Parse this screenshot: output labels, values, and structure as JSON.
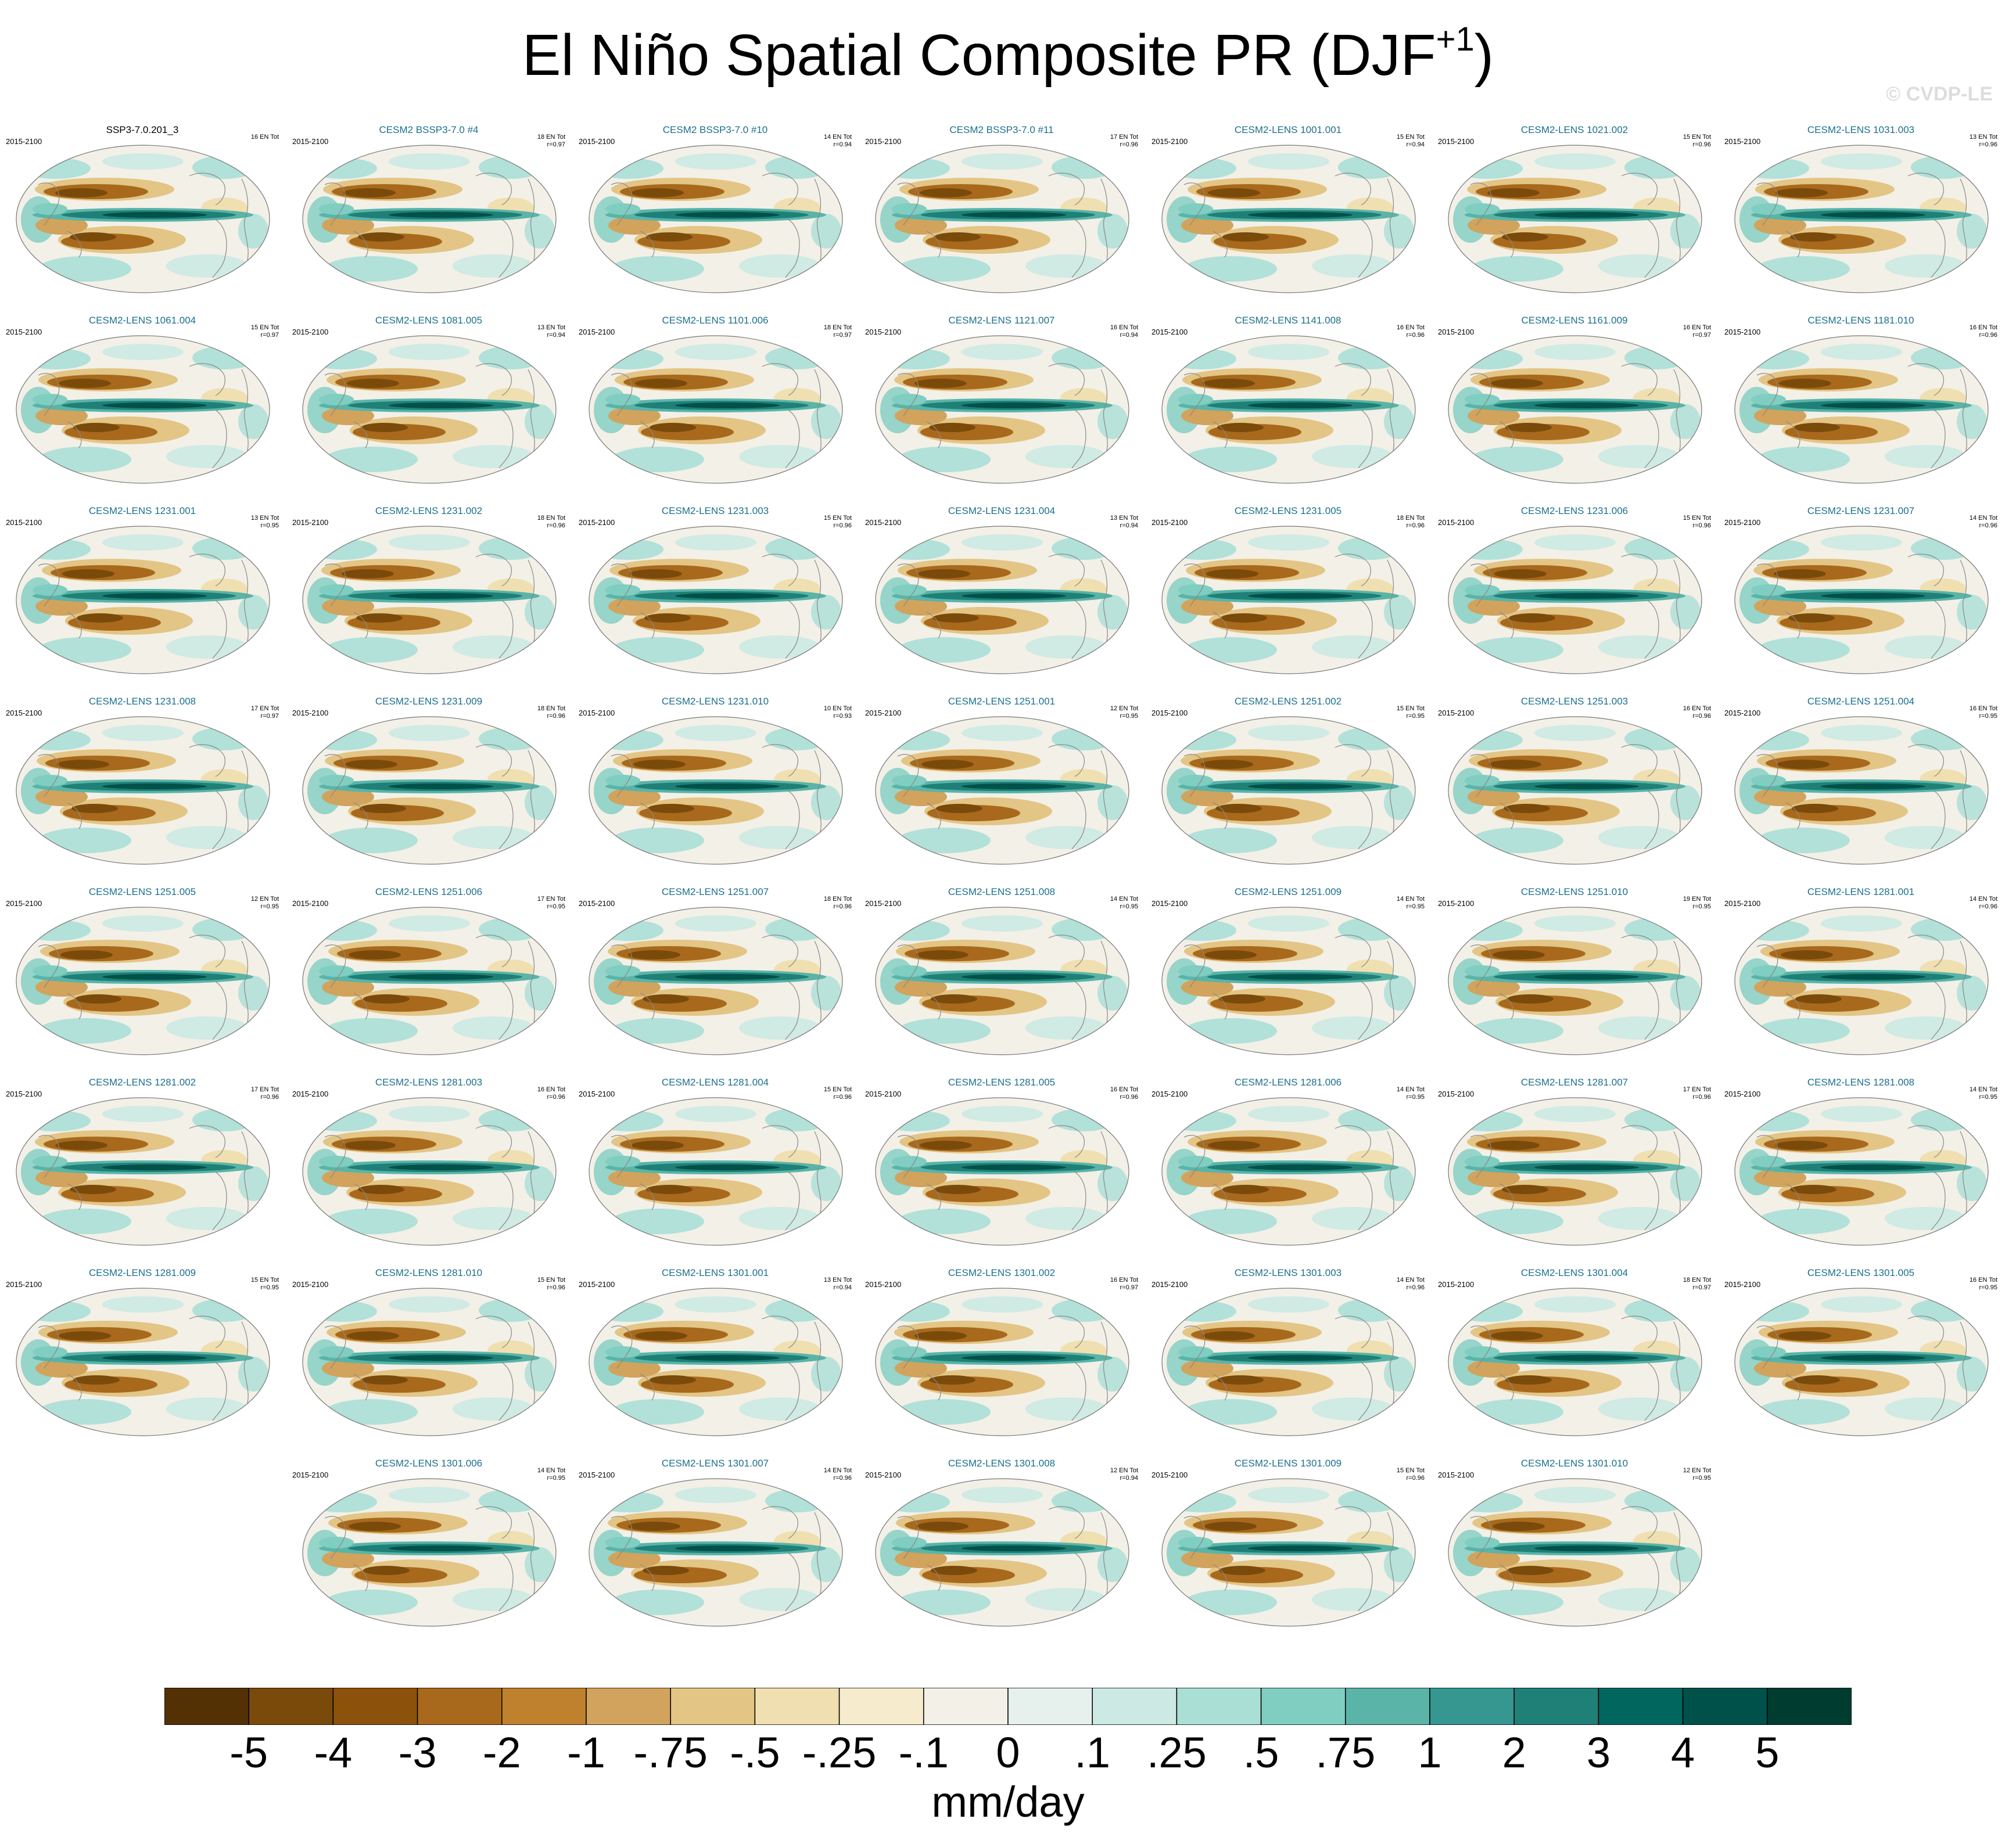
{
  "title": {
    "main": "El Niño Spatial Composite PR (DJF",
    "sup": "+1",
    "end": ")"
  },
  "credit": "© CVDP-LE",
  "colorbar": {
    "colors": [
      "#543005",
      "#7a4a0b",
      "#8c510a",
      "#a8691d",
      "#bf812d",
      "#d2a35c",
      "#e3c585",
      "#f0dfb0",
      "#f6ebcc",
      "#f3f0e8",
      "#e6f1ee",
      "#cce9e3",
      "#aadfd6",
      "#80cdc1",
      "#5ab4a8",
      "#35978f",
      "#1f8077",
      "#01665e",
      "#00514a",
      "#003c30"
    ],
    "labels": [
      "-5",
      "-4",
      "-3",
      "-2",
      "-1",
      "-.75",
      "-.5",
      "-.25",
      "-.1",
      "0",
      ".1",
      ".25",
      ".5",
      ".75",
      "1",
      "2",
      "3",
      "4",
      "5"
    ],
    "units": "mm/day"
  },
  "chart_data": {
    "type": "heatmap",
    "title": "El Niño Spatial Composite PR (DJF+1)",
    "variable": "precipitation composite",
    "units": "mm/day",
    "levels": [
      -5,
      -4,
      -3,
      -2,
      -1,
      -0.75,
      -0.5,
      -0.25,
      -0.1,
      0,
      0.1,
      0.25,
      0.5,
      0.75,
      1,
      2,
      3,
      4,
      5
    ],
    "panels": [
      {
        "label": "SSP3-7.0.201_3",
        "period": "2015-2100",
        "events": "16 EN Tot",
        "r": "",
        "observational": true
      },
      {
        "label": "CESM2 BSSP3-7.0 #4",
        "period": "2015-2100",
        "events": "18 EN Tot",
        "r": "r=0.97"
      },
      {
        "label": "CESM2 BSSP3-7.0 #10",
        "period": "2015-2100",
        "events": "14 EN Tot",
        "r": "r=0.94"
      },
      {
        "label": "CESM2 BSSP3-7.0 #11",
        "period": "2015-2100",
        "events": "17 EN Tot",
        "r": "r=0.96"
      },
      {
        "label": "CESM2-LENS 1001.001",
        "period": "2015-2100",
        "events": "15 EN Tot",
        "r": "r=0.94"
      },
      {
        "label": "CESM2-LENS 1021.002",
        "period": "2015-2100",
        "events": "15 EN Tot",
        "r": "r=0.96"
      },
      {
        "label": "CESM2-LENS 1031.003",
        "period": "2015-2100",
        "events": "13 EN Tot",
        "r": "r=0.96"
      },
      {
        "label": "CESM2-LENS 1061.004",
        "period": "2015-2100",
        "events": "15 EN Tot",
        "r": "r=0.97"
      },
      {
        "label": "CESM2-LENS 1081.005",
        "period": "2015-2100",
        "events": "13 EN Tot",
        "r": "r=0.94"
      },
      {
        "label": "CESM2-LENS 1101.006",
        "period": "2015-2100",
        "events": "18 EN Tot",
        "r": "r=0.97"
      },
      {
        "label": "CESM2-LENS 1121.007",
        "period": "2015-2100",
        "events": "16 EN Tot",
        "r": "r=0.94"
      },
      {
        "label": "CESM2-LENS 1141.008",
        "period": "2015-2100",
        "events": "16 EN Tot",
        "r": "r=0.96"
      },
      {
        "label": "CESM2-LENS 1161.009",
        "period": "2015-2100",
        "events": "16 EN Tot",
        "r": "r=0.97"
      },
      {
        "label": "CESM2-LENS 1181.010",
        "period": "2015-2100",
        "events": "16 EN Tot",
        "r": "r=0.96"
      },
      {
        "label": "CESM2-LENS 1231.001",
        "period": "2015-2100",
        "events": "13 EN Tot",
        "r": "r=0.95"
      },
      {
        "label": "CESM2-LENS 1231.002",
        "period": "2015-2100",
        "events": "18 EN Tot",
        "r": "r=0.96"
      },
      {
        "label": "CESM2-LENS 1231.003",
        "period": "2015-2100",
        "events": "15 EN Tot",
        "r": "r=0.96"
      },
      {
        "label": "CESM2-LENS 1231.004",
        "period": "2015-2100",
        "events": "13 EN Tot",
        "r": "r=0.94"
      },
      {
        "label": "CESM2-LENS 1231.005",
        "period": "2015-2100",
        "events": "18 EN Tot",
        "r": "r=0.96"
      },
      {
        "label": "CESM2-LENS 1231.006",
        "period": "2015-2100",
        "events": "15 EN Tot",
        "r": "r=0.96"
      },
      {
        "label": "CESM2-LENS 1231.007",
        "period": "2015-2100",
        "events": "14 EN Tot",
        "r": "r=0.96"
      },
      {
        "label": "CESM2-LENS 1231.008",
        "period": "2015-2100",
        "events": "17 EN Tot",
        "r": "r=0.97"
      },
      {
        "label": "CESM2-LENS 1231.009",
        "period": "2015-2100",
        "events": "18 EN Tot",
        "r": "r=0.96"
      },
      {
        "label": "CESM2-LENS 1231.010",
        "period": "2015-2100",
        "events": "10 EN Tot",
        "r": "r=0.93"
      },
      {
        "label": "CESM2-LENS 1251.001",
        "period": "2015-2100",
        "events": "12 EN Tot",
        "r": "r=0.95"
      },
      {
        "label": "CESM2-LENS 1251.002",
        "period": "2015-2100",
        "events": "15 EN Tot",
        "r": "r=0.95"
      },
      {
        "label": "CESM2-LENS 1251.003",
        "period": "2015-2100",
        "events": "16 EN Tot",
        "r": "r=0.96"
      },
      {
        "label": "CESM2-LENS 1251.004",
        "period": "2015-2100",
        "events": "16 EN Tot",
        "r": "r=0.95"
      },
      {
        "label": "CESM2-LENS 1251.005",
        "period": "2015-2100",
        "events": "12 EN Tot",
        "r": "r=0.95"
      },
      {
        "label": "CESM2-LENS 1251.006",
        "period": "2015-2100",
        "events": "17 EN Tot",
        "r": "r=0.95"
      },
      {
        "label": "CESM2-LENS 1251.007",
        "period": "2015-2100",
        "events": "18 EN Tot",
        "r": "r=0.96"
      },
      {
        "label": "CESM2-LENS 1251.008",
        "period": "2015-2100",
        "events": "14 EN Tot",
        "r": "r=0.95"
      },
      {
        "label": "CESM2-LENS 1251.009",
        "period": "2015-2100",
        "events": "14 EN Tot",
        "r": "r=0.95"
      },
      {
        "label": "CESM2-LENS 1251.010",
        "period": "2015-2100",
        "events": "19 EN Tot",
        "r": "r=0.95"
      },
      {
        "label": "CESM2-LENS 1281.001",
        "period": "2015-2100",
        "events": "14 EN Tot",
        "r": "r=0.96"
      },
      {
        "label": "CESM2-LENS 1281.002",
        "period": "2015-2100",
        "events": "17 EN Tot",
        "r": "r=0.96"
      },
      {
        "label": "CESM2-LENS 1281.003",
        "period": "2015-2100",
        "events": "16 EN Tot",
        "r": "r=0.96"
      },
      {
        "label": "CESM2-LENS 1281.004",
        "period": "2015-2100",
        "events": "15 EN Tot",
        "r": "r=0.96"
      },
      {
        "label": "CESM2-LENS 1281.005",
        "period": "2015-2100",
        "events": "16 EN Tot",
        "r": "r=0.96"
      },
      {
        "label": "CESM2-LENS 1281.006",
        "period": "2015-2100",
        "events": "14 EN Tot",
        "r": "r=0.95"
      },
      {
        "label": "CESM2-LENS 1281.007",
        "period": "2015-2100",
        "events": "17 EN Tot",
        "r": "r=0.96"
      },
      {
        "label": "CESM2-LENS 1281.008",
        "period": "2015-2100",
        "events": "14 EN Tot",
        "r": "r=0.95"
      },
      {
        "label": "CESM2-LENS 1281.009",
        "period": "2015-2100",
        "events": "15 EN Tot",
        "r": "r=0.95"
      },
      {
        "label": "CESM2-LENS 1281.010",
        "period": "2015-2100",
        "events": "15 EN Tot",
        "r": "r=0.96"
      },
      {
        "label": "CESM2-LENS 1301.001",
        "period": "2015-2100",
        "events": "13 EN Tot",
        "r": "r=0.94"
      },
      {
        "label": "CESM2-LENS 1301.002",
        "period": "2015-2100",
        "events": "16 EN Tot",
        "r": "r=0.97"
      },
      {
        "label": "CESM2-LENS 1301.003",
        "period": "2015-2100",
        "events": "14 EN Tot",
        "r": "r=0.96"
      },
      {
        "label": "CESM2-LENS 1301.004",
        "period": "2015-2100",
        "events": "18 EN Tot",
        "r": "r=0.97"
      },
      {
        "label": "CESM2-LENS 1301.005",
        "period": "2015-2100",
        "events": "16 EN Tot",
        "r": "r=0.95"
      },
      {
        "label": "CESM2-LENS 1301.006",
        "period": "2015-2100",
        "events": "14 EN Tot",
        "r": "r=0.95"
      },
      {
        "label": "CESM2-LENS 1301.007",
        "period": "2015-2100",
        "events": "14 EN Tot",
        "r": "r=0.96"
      },
      {
        "label": "CESM2-LENS 1301.008",
        "period": "2015-2100",
        "events": "12 EN Tot",
        "r": "r=0.94"
      },
      {
        "label": "CESM2-LENS 1301.009",
        "period": "2015-2100",
        "events": "15 EN Tot",
        "r": "r=0.96"
      },
      {
        "label": "CESM2-LENS 1301.010",
        "period": "2015-2100",
        "events": "12 EN Tot",
        "r": "r=0.95"
      }
    ]
  }
}
